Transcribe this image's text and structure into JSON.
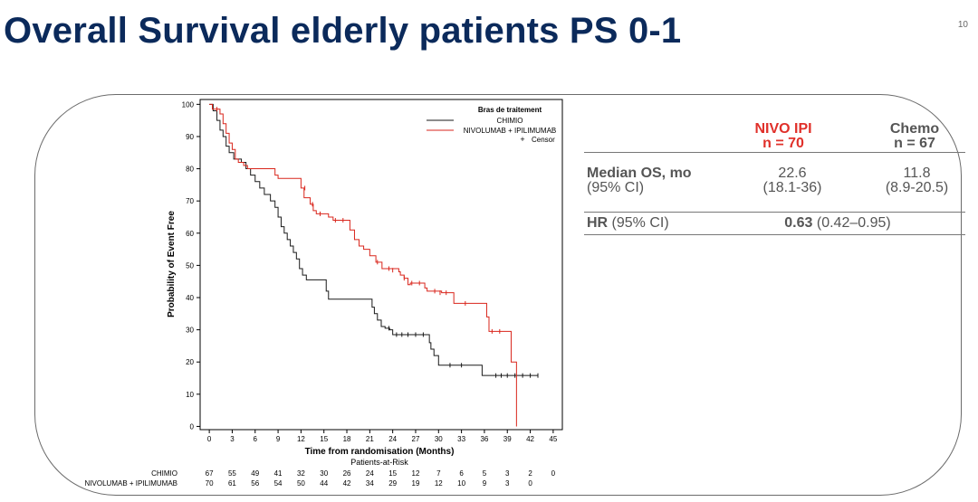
{
  "slide": {
    "title": "Overall Survival elderly patients PS 0-1",
    "page_number": "10"
  },
  "chart_data": {
    "type": "line",
    "subtype": "kaplan-meier",
    "xlabel": "Time from randomisation (Months)",
    "ylabel": "Probability of Event Free",
    "x_ticks": [
      0,
      3,
      6,
      9,
      12,
      15,
      18,
      21,
      24,
      27,
      30,
      33,
      36,
      39,
      42,
      45
    ],
    "y_ticks": [
      0,
      10,
      20,
      30,
      40,
      50,
      60,
      70,
      80,
      90,
      100
    ],
    "xlim": [
      -1.2,
      46.2
    ],
    "ylim": [
      -1,
      101.5
    ],
    "legend": {
      "title": "Bras de traitement",
      "position": "top-right",
      "entries": [
        "CHIMIO",
        "NIVOLUMAB + IPILIMUMAB"
      ],
      "censor_label": "Censor",
      "censor_symbol": "+"
    },
    "series": [
      {
        "name": "CHIMIO",
        "color": "#1a1a1a",
        "points": [
          [
            0,
            100
          ],
          [
            0.5,
            98
          ],
          [
            1.0,
            95
          ],
          [
            1.4,
            92
          ],
          [
            1.8,
            90
          ],
          [
            2.2,
            87
          ],
          [
            2.6,
            85
          ],
          [
            3.2,
            83
          ],
          [
            4.2,
            82
          ],
          [
            4.8,
            80
          ],
          [
            5.4,
            78
          ],
          [
            6.0,
            76
          ],
          [
            6.6,
            74
          ],
          [
            7.2,
            72
          ],
          [
            8.0,
            70
          ],
          [
            8.6,
            68
          ],
          [
            9.0,
            65
          ],
          [
            9.4,
            62
          ],
          [
            9.8,
            60
          ],
          [
            10.2,
            58
          ],
          [
            10.6,
            56
          ],
          [
            11.0,
            54
          ],
          [
            11.4,
            52
          ],
          [
            11.8,
            49
          ],
          [
            12.2,
            47
          ],
          [
            12.7,
            45.5
          ],
          [
            15.0,
            45.5
          ],
          [
            15.3,
            42
          ],
          [
            15.6,
            39.5
          ],
          [
            21.0,
            39.5
          ],
          [
            21.3,
            37
          ],
          [
            21.6,
            35
          ],
          [
            22.0,
            33
          ],
          [
            22.5,
            31
          ],
          [
            23.0,
            30.5
          ],
          [
            23.6,
            30
          ],
          [
            24.0,
            28.5
          ],
          [
            28.5,
            28.5
          ],
          [
            28.8,
            26
          ],
          [
            29.0,
            24
          ],
          [
            29.4,
            22
          ],
          [
            30.0,
            19
          ],
          [
            35.5,
            19
          ],
          [
            35.7,
            15.8
          ],
          [
            43.0,
            15.8
          ]
        ],
        "censor_marks": [
          [
            23.5,
            30.5
          ],
          [
            24.5,
            28.5
          ],
          [
            25.2,
            28.5
          ],
          [
            26.0,
            28.5
          ],
          [
            27.0,
            28.5
          ],
          [
            28.0,
            28.5
          ],
          [
            31.5,
            19
          ],
          [
            33.0,
            19
          ],
          [
            37.5,
            15.8
          ],
          [
            38.2,
            15.8
          ],
          [
            39.0,
            15.8
          ],
          [
            40.0,
            15.8
          ],
          [
            41.0,
            15.8
          ],
          [
            42.0,
            15.8
          ],
          [
            43.0,
            15.8
          ]
        ]
      },
      {
        "name": "NIVOLUMAB + IPILIMUMAB",
        "color": "#d9261c",
        "points": [
          [
            0,
            100
          ],
          [
            0.4,
            98.5
          ],
          [
            1.4,
            97
          ],
          [
            1.8,
            94
          ],
          [
            2.2,
            91
          ],
          [
            2.6,
            88
          ],
          [
            3.0,
            86
          ],
          [
            3.4,
            83
          ],
          [
            3.8,
            82
          ],
          [
            4.5,
            81
          ],
          [
            5.0,
            80
          ],
          [
            8.2,
            80
          ],
          [
            8.6,
            78
          ],
          [
            9.0,
            77
          ],
          [
            11.6,
            77
          ],
          [
            12.0,
            74
          ],
          [
            12.4,
            71
          ],
          [
            13.2,
            69
          ],
          [
            13.6,
            67
          ],
          [
            14.0,
            66
          ],
          [
            15.6,
            65
          ],
          [
            16.2,
            64
          ],
          [
            17.8,
            64
          ],
          [
            18.4,
            61
          ],
          [
            19.0,
            58
          ],
          [
            19.6,
            56
          ],
          [
            20.2,
            55
          ],
          [
            21.0,
            53
          ],
          [
            21.8,
            51
          ],
          [
            22.6,
            49
          ],
          [
            24.8,
            48
          ],
          [
            25.0,
            47
          ],
          [
            25.5,
            46
          ],
          [
            26.0,
            44
          ],
          [
            26.3,
            44.5
          ],
          [
            28.0,
            44.5
          ],
          [
            28.2,
            43
          ],
          [
            28.5,
            42
          ],
          [
            29.0,
            42
          ],
          [
            30.4,
            41.5
          ],
          [
            31.5,
            41.5
          ],
          [
            32.0,
            38.2
          ],
          [
            36.0,
            38.2
          ],
          [
            36.3,
            34
          ],
          [
            36.6,
            29.5
          ],
          [
            39.2,
            29.5
          ],
          [
            39.5,
            20
          ],
          [
            39.9,
            20
          ],
          [
            40.2,
            0
          ]
        ],
        "censor_marks": [
          [
            1.0,
            98.5
          ],
          [
            12.5,
            74
          ],
          [
            13.5,
            69
          ],
          [
            14.5,
            66
          ],
          [
            16.5,
            64
          ],
          [
            17.5,
            64
          ],
          [
            22.0,
            51
          ],
          [
            23.5,
            49
          ],
          [
            24.0,
            48.5
          ],
          [
            25.5,
            46
          ],
          [
            26.5,
            44.5
          ],
          [
            27.5,
            44.5
          ],
          [
            29.5,
            42
          ],
          [
            30.2,
            41.5
          ],
          [
            31.0,
            41.5
          ],
          [
            33.5,
            38.2
          ],
          [
            37.0,
            29.5
          ],
          [
            38.0,
            29.5
          ]
        ]
      }
    ],
    "risk_table": {
      "title": "Patients-at-Risk",
      "times": [
        0,
        3,
        6,
        9,
        12,
        15,
        18,
        21,
        24,
        27,
        30,
        33,
        36,
        39,
        42,
        45
      ],
      "rows": [
        {
          "label": "CHIMIO",
          "counts": [
            "67",
            "55",
            "49",
            "41",
            "32",
            "30",
            "26",
            "24",
            "15",
            "12",
            "7",
            "6",
            "5",
            "3",
            "2",
            "0"
          ]
        },
        {
          "label": "NIVOLUMAB + IPILIMUMAB",
          "counts": [
            "70",
            "61",
            "56",
            "54",
            "50",
            "44",
            "42",
            "34",
            "29",
            "19",
            "12",
            "10",
            "9",
            "3",
            "0",
            ""
          ]
        }
      ]
    }
  },
  "summary_table": {
    "columns": [
      {
        "line1": "NIVO IPI",
        "line2": "n = 70"
      },
      {
        "line1": "Chemo",
        "line2": "n = 67"
      }
    ],
    "median_os": {
      "label": "Median OS, mo",
      "sublabel": "(95% CI)",
      "nivo_value": "22.6",
      "nivo_ci": "(18.1-36)",
      "chemo_value": "11.8",
      "chemo_ci": "(8.9-20.5)"
    },
    "hr": {
      "label": "HR",
      "label_suffix": " (95% CI)",
      "value": "0.63",
      "ci": " (0.42–0.95)"
    }
  }
}
